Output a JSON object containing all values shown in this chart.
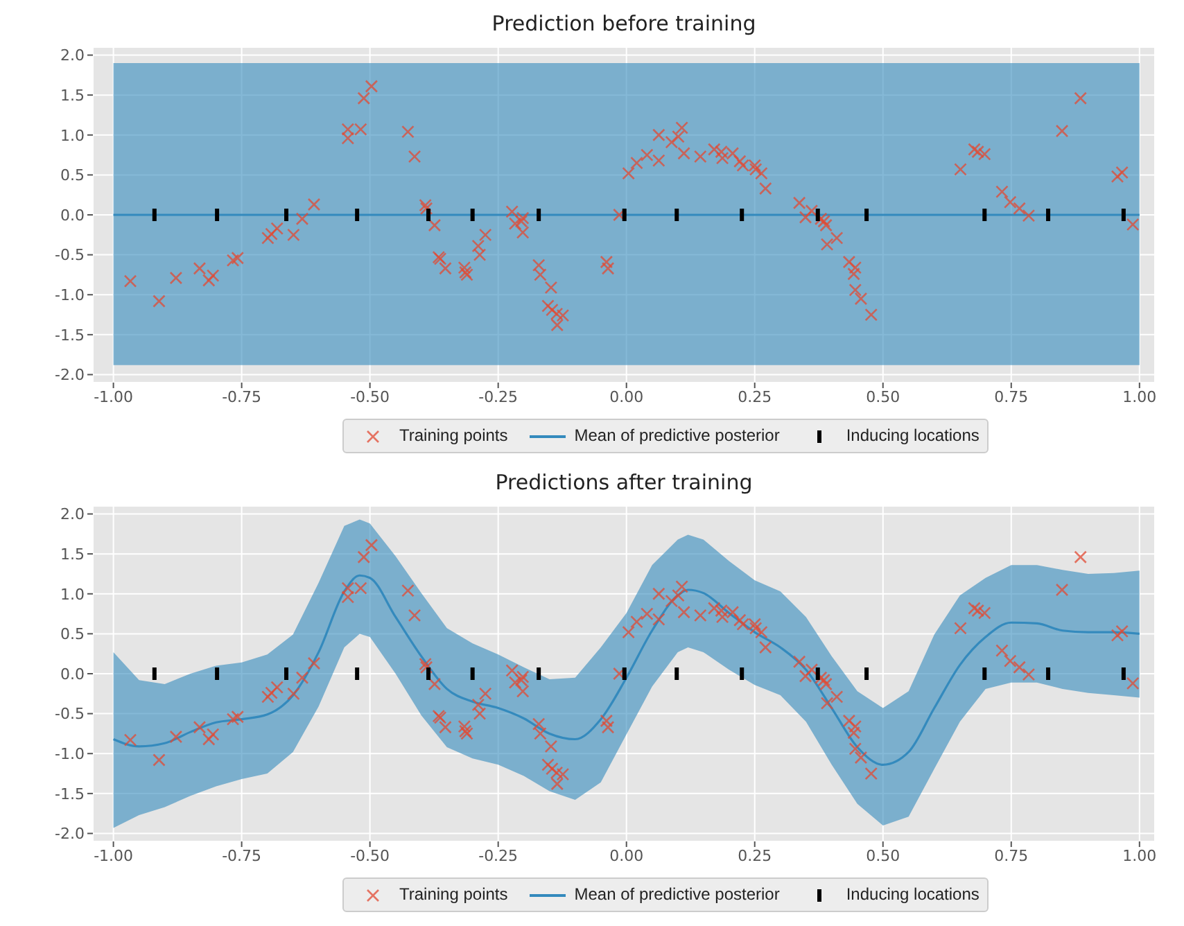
{
  "chart_data": [
    {
      "type": "line",
      "title": "Prediction before training",
      "grid": true,
      "legend": "bottom",
      "xlim": [
        -1.04,
        1.03
      ],
      "ylim": [
        -2.1,
        2.1
      ],
      "xticks": [
        {
          "value": -1,
          "label": "-1.00"
        },
        {
          "value": -0.75,
          "label": "-0.75"
        },
        {
          "value": -0.5,
          "label": "-0.50"
        },
        {
          "value": -0.25,
          "label": "-0.25"
        },
        {
          "value": 0,
          "label": "0.00"
        },
        {
          "value": 0.25,
          "label": "0.25"
        },
        {
          "value": 0.5,
          "label": "0.50"
        },
        {
          "value": 0.75,
          "label": "0.75"
        },
        {
          "value": 1,
          "label": "1.00"
        }
      ],
      "yticks": [
        {
          "value": -2,
          "label": "-2.0"
        },
        -1.5,
        {
          "value": -1,
          "label": "-1.0"
        },
        -0.5,
        {
          "value": 0,
          "label": "0.0"
        },
        0.5,
        {
          "value": 1,
          "label": "1.0"
        },
        1.5,
        {
          "value": 2,
          "label": "2.0"
        }
      ],
      "series": [
        {
          "name": "Training points",
          "type": "scatter",
          "marker": "cross",
          "color": "#e24a33",
          "x": [
            -0.967,
            -0.911,
            -0.878,
            -0.832,
            -0.814,
            -0.806,
            -0.767,
            -0.758,
            -0.699,
            -0.692,
            -0.681,
            -0.649,
            -0.632,
            -0.609,
            -0.543,
            -0.543,
            -0.518,
            -0.512,
            -0.497,
            -0.426,
            -0.413,
            -0.392,
            -0.39,
            -0.374,
            -0.366,
            -0.363,
            -0.353,
            -0.316,
            -0.314,
            -0.311,
            -0.289,
            -0.286,
            -0.275,
            -0.223,
            -0.217,
            -0.205,
            -0.202,
            -0.202,
            -0.171,
            -0.168,
            -0.147,
            -0.153,
            -0.145,
            -0.136,
            -0.124,
            -0.135,
            -0.039,
            -0.036,
            -0.014,
            0.004,
            0.02,
            0.04,
            0.063,
            0.063,
            0.088,
            0.101,
            0.108,
            0.112,
            0.144,
            0.171,
            0.185,
            0.187,
            0.207,
            0.221,
            0.227,
            0.25,
            0.252,
            0.263,
            0.271,
            0.337,
            0.349,
            0.361,
            0.379,
            0.385,
            0.389,
            0.391,
            0.41,
            0.434,
            0.446,
            0.443,
            0.446,
            0.457,
            0.477,
            0.651,
            0.678,
            0.685,
            0.698,
            0.732,
            0.748,
            0.766,
            0.784,
            0.849,
            0.885,
            0.957,
            0.966,
            0.987
          ],
          "values": [
            -0.83,
            -1.08,
            -0.79,
            -0.67,
            -0.82,
            -0.76,
            -0.57,
            -0.54,
            -0.29,
            -0.24,
            -0.17,
            -0.25,
            -0.05,
            0.13,
            1.07,
            0.96,
            1.07,
            1.46,
            1.61,
            1.04,
            0.73,
            0.12,
            0.08,
            -0.13,
            -0.53,
            -0.55,
            -0.67,
            -0.66,
            -0.72,
            -0.75,
            -0.39,
            -0.5,
            -0.25,
            0.04,
            -0.11,
            -0.08,
            -0.04,
            -0.22,
            -0.63,
            -0.75,
            -0.91,
            -1.14,
            -1.19,
            -1.24,
            -1.26,
            -1.38,
            -0.59,
            -0.67,
            0.0,
            0.52,
            0.65,
            0.75,
            0.68,
            1.0,
            0.91,
            0.98,
            1.09,
            0.77,
            0.73,
            0.82,
            0.79,
            0.71,
            0.77,
            0.67,
            0.62,
            0.62,
            0.57,
            0.52,
            0.33,
            0.15,
            -0.03,
            0.05,
            -0.05,
            -0.08,
            -0.13,
            -0.37,
            -0.29,
            -0.59,
            -0.66,
            -0.74,
            -0.94,
            -1.05,
            -1.25,
            0.57,
            0.82,
            0.79,
            0.76,
            0.29,
            0.16,
            0.08,
            -0.01,
            1.05,
            1.46,
            0.48,
            0.53,
            -0.12
          ]
        },
        {
          "name": "Mean of predictive posterior",
          "color": "#348abd",
          "x": [
            -1,
            -0.75,
            -0.5,
            -0.25,
            0,
            0.25,
            0.5,
            0.75,
            1
          ],
          "values": [
            0,
            0,
            0,
            0,
            0,
            0,
            0,
            0,
            0
          ],
          "lower": [
            -1.88,
            -1.88,
            -1.88,
            -1.88,
            -1.88,
            -1.88,
            -1.88,
            -1.88,
            -1.88
          ],
          "upper": [
            1.9,
            1.9,
            1.9,
            1.9,
            1.9,
            1.9,
            1.9,
            1.9,
            1.9
          ]
        },
        {
          "name": "Inducing locations",
          "type": "scatter",
          "marker": "square",
          "color": "#000000",
          "x": [
            -0.92,
            -0.798,
            -0.663,
            -0.525,
            -0.386,
            -0.3,
            -0.171,
            -0.004,
            0.098,
            0.225,
            0.373,
            0.468,
            0.698,
            0.822,
            0.969
          ],
          "values": [
            0,
            0,
            0,
            0,
            0,
            0,
            0,
            0,
            0,
            0,
            0,
            0,
            0,
            0,
            0
          ]
        }
      ]
    },
    {
      "type": "line",
      "title": "Predictions after training",
      "grid": true,
      "legend": "bottom",
      "xlim": [
        -1.04,
        1.03
      ],
      "ylim": [
        -2.1,
        2.1
      ],
      "xticks": [
        {
          "value": -1,
          "label": "-1.00"
        },
        {
          "value": -0.75,
          "label": "-0.75"
        },
        {
          "value": -0.5,
          "label": "-0.50"
        },
        {
          "value": -0.25,
          "label": "-0.25"
        },
        {
          "value": 0,
          "label": "0.00"
        },
        {
          "value": 0.25,
          "label": "0.25"
        },
        {
          "value": 0.5,
          "label": "0.50"
        },
        {
          "value": 0.75,
          "label": "0.75"
        },
        {
          "value": 1,
          "label": "1.00"
        }
      ],
      "yticks": [
        {
          "value": -2,
          "label": "-2.0"
        },
        -1.5,
        {
          "value": -1,
          "label": "-1.0"
        },
        -0.5,
        {
          "value": 0,
          "label": "0.0"
        },
        0.5,
        {
          "value": 1,
          "label": "1.0"
        },
        1.5,
        {
          "value": 2,
          "label": "2.0"
        }
      ],
      "series": [
        {
          "name": "Training points",
          "type": "scatter",
          "marker": "cross",
          "color": "#e24a33",
          "x": [
            -0.967,
            -0.911,
            -0.878,
            -0.832,
            -0.814,
            -0.806,
            -0.767,
            -0.758,
            -0.699,
            -0.692,
            -0.681,
            -0.649,
            -0.632,
            -0.609,
            -0.543,
            -0.543,
            -0.518,
            -0.512,
            -0.497,
            -0.426,
            -0.413,
            -0.392,
            -0.39,
            -0.374,
            -0.366,
            -0.363,
            -0.353,
            -0.316,
            -0.314,
            -0.311,
            -0.289,
            -0.286,
            -0.275,
            -0.223,
            -0.217,
            -0.205,
            -0.202,
            -0.202,
            -0.171,
            -0.168,
            -0.147,
            -0.153,
            -0.145,
            -0.136,
            -0.124,
            -0.135,
            -0.039,
            -0.036,
            -0.014,
            0.004,
            0.02,
            0.04,
            0.063,
            0.063,
            0.088,
            0.101,
            0.108,
            0.112,
            0.144,
            0.171,
            0.185,
            0.187,
            0.207,
            0.221,
            0.227,
            0.25,
            0.252,
            0.263,
            0.271,
            0.337,
            0.349,
            0.361,
            0.379,
            0.385,
            0.389,
            0.391,
            0.41,
            0.434,
            0.446,
            0.443,
            0.446,
            0.457,
            0.477,
            0.651,
            0.678,
            0.685,
            0.698,
            0.732,
            0.748,
            0.766,
            0.784,
            0.849,
            0.885,
            0.957,
            0.966,
            0.987
          ],
          "values": [
            -0.83,
            -1.08,
            -0.79,
            -0.67,
            -0.82,
            -0.76,
            -0.57,
            -0.54,
            -0.29,
            -0.24,
            -0.17,
            -0.25,
            -0.05,
            0.13,
            1.07,
            0.96,
            1.07,
            1.46,
            1.61,
            1.04,
            0.73,
            0.12,
            0.08,
            -0.13,
            -0.53,
            -0.55,
            -0.67,
            -0.66,
            -0.72,
            -0.75,
            -0.39,
            -0.5,
            -0.25,
            0.04,
            -0.11,
            -0.08,
            -0.04,
            -0.22,
            -0.63,
            -0.75,
            -0.91,
            -1.14,
            -1.19,
            -1.24,
            -1.26,
            -1.38,
            -0.59,
            -0.67,
            0.0,
            0.52,
            0.65,
            0.75,
            0.68,
            1.0,
            0.91,
            0.98,
            1.09,
            0.77,
            0.73,
            0.82,
            0.79,
            0.71,
            0.77,
            0.67,
            0.62,
            0.62,
            0.57,
            0.52,
            0.33,
            0.15,
            -0.03,
            0.05,
            -0.05,
            -0.08,
            -0.13,
            -0.37,
            -0.29,
            -0.59,
            -0.66,
            -0.74,
            -0.94,
            -1.05,
            -1.25,
            0.57,
            0.82,
            0.79,
            0.76,
            0.29,
            0.16,
            0.08,
            -0.01,
            1.05,
            1.46,
            0.48,
            0.53,
            -0.12
          ]
        },
        {
          "name": "Mean of predictive posterior",
          "color": "#348abd",
          "x": [
            -1,
            -0.95,
            -0.9,
            -0.85,
            -0.8,
            -0.75,
            -0.7,
            -0.65,
            -0.6,
            -0.55,
            -0.52,
            -0.5,
            -0.45,
            -0.4,
            -0.35,
            -0.3,
            -0.25,
            -0.2,
            -0.15,
            -0.1,
            -0.05,
            0,
            0.05,
            0.1,
            0.12,
            0.15,
            0.2,
            0.25,
            0.3,
            0.35,
            0.4,
            0.45,
            0.5,
            0.55,
            0.6,
            0.65,
            0.7,
            0.75,
            0.8,
            0.85,
            0.9,
            0.95,
            1
          ],
          "values": [
            -0.82,
            -0.91,
            -0.87,
            -0.73,
            -0.61,
            -0.57,
            -0.51,
            -0.27,
            0.27,
            1.03,
            1.23,
            1.2,
            0.71,
            0.22,
            -0.19,
            -0.35,
            -0.43,
            -0.56,
            -0.75,
            -0.82,
            -0.57,
            -0.05,
            0.54,
            0.98,
            1.05,
            1.01,
            0.76,
            0.52,
            0.33,
            0.05,
            -0.43,
            -0.92,
            -1.14,
            -0.98,
            -0.43,
            0.11,
            0.46,
            0.64,
            0.63,
            0.54,
            0.52,
            0.52,
            0.5
          ],
          "lower": [
            -1.93,
            -1.77,
            -1.67,
            -1.53,
            -1.41,
            -1.32,
            -1.25,
            -0.98,
            -0.41,
            0.33,
            0.5,
            0.46,
            0.0,
            -0.52,
            -0.92,
            -1.06,
            -1.14,
            -1.28,
            -1.47,
            -1.58,
            -1.36,
            -0.76,
            -0.16,
            0.27,
            0.33,
            0.27,
            0.05,
            -0.14,
            -0.27,
            -0.6,
            -1.14,
            -1.63,
            -1.9,
            -1.79,
            -1.19,
            -0.6,
            -0.19,
            -0.11,
            -0.11,
            -0.19,
            -0.24,
            -0.27,
            -0.3
          ],
          "upper": [
            0.27,
            -0.08,
            -0.13,
            0.0,
            0.1,
            0.14,
            0.24,
            0.49,
            1.14,
            1.85,
            1.93,
            1.88,
            1.47,
            1.01,
            0.57,
            0.38,
            0.24,
            0.08,
            -0.07,
            -0.05,
            0.33,
            0.76,
            1.36,
            1.68,
            1.74,
            1.68,
            1.41,
            1.17,
            1.03,
            0.71,
            0.22,
            -0.22,
            -0.43,
            -0.22,
            0.49,
            0.98,
            1.2,
            1.36,
            1.36,
            1.3,
            1.25,
            1.26,
            1.29
          ]
        },
        {
          "name": "Inducing locations",
          "type": "scatter",
          "marker": "square",
          "color": "#000000",
          "x": [
            -0.92,
            -0.798,
            -0.663,
            -0.525,
            -0.386,
            -0.3,
            -0.171,
            -0.004,
            0.098,
            0.225,
            0.373,
            0.468,
            0.698,
            0.822,
            0.969
          ],
          "values": [
            0,
            0,
            0,
            0,
            0,
            0,
            0,
            0,
            0,
            0,
            0,
            0,
            0,
            0,
            0
          ]
        }
      ]
    }
  ]
}
